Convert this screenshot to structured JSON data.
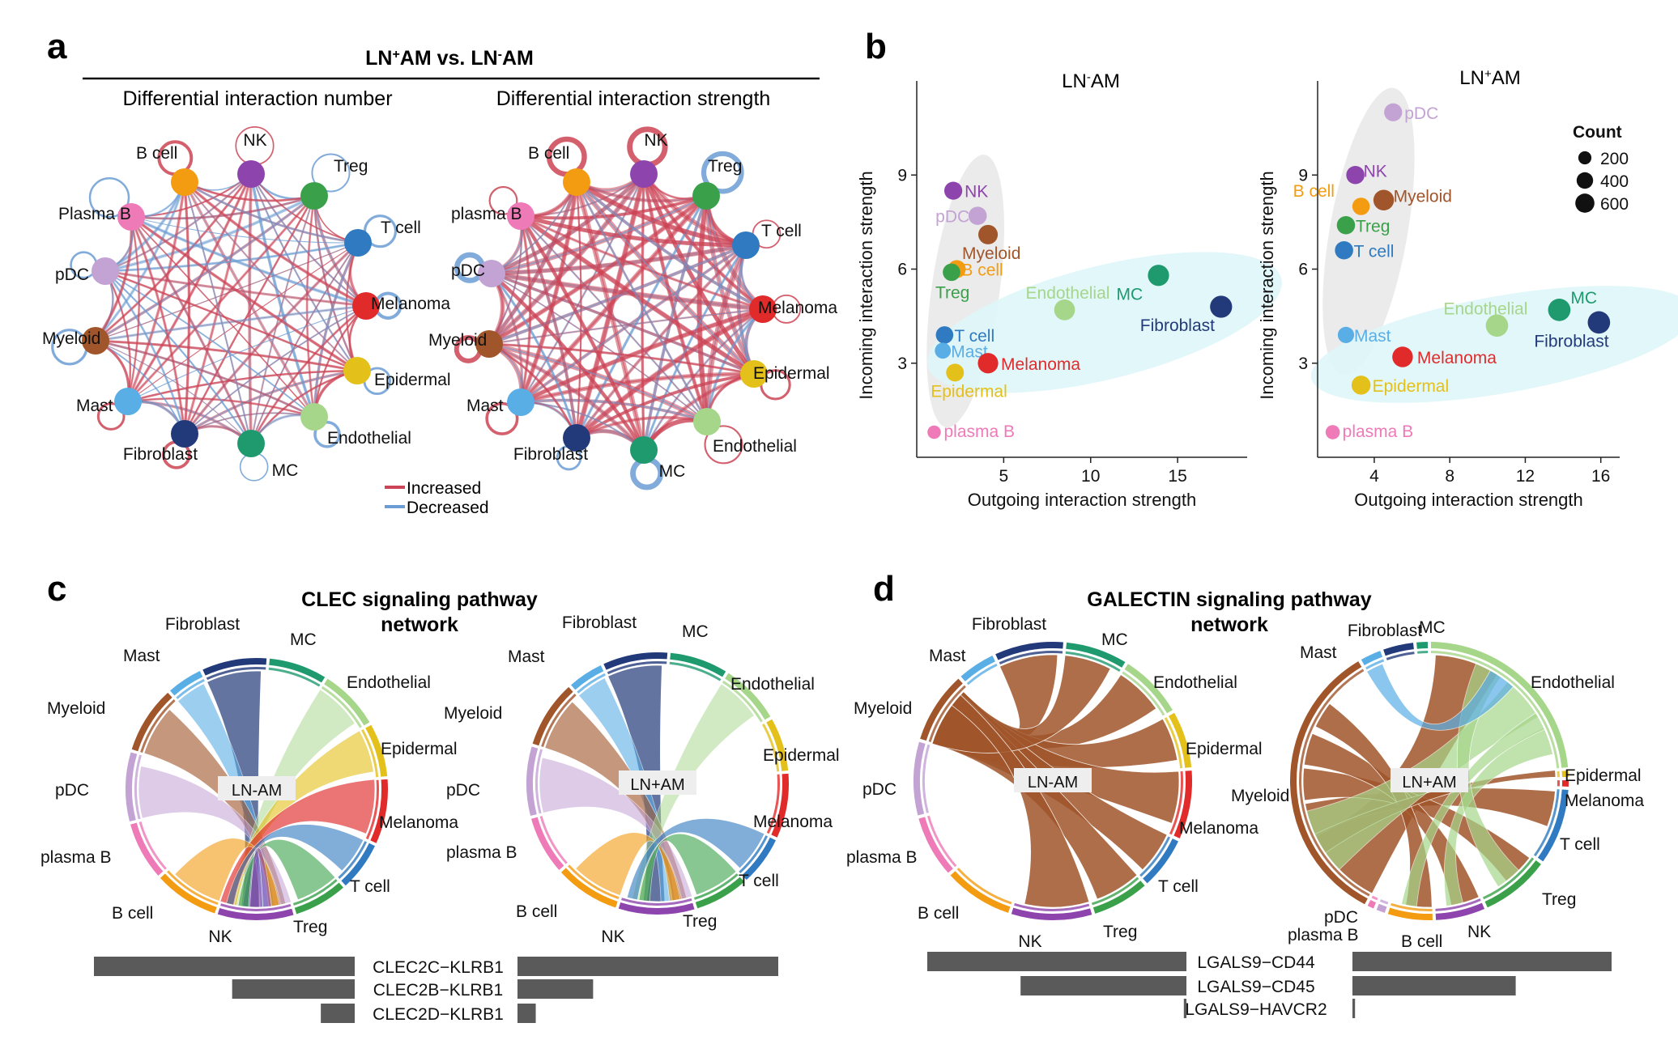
{
  "panel_labels": {
    "a": "a",
    "b": "b",
    "c": "c",
    "d": "d"
  },
  "colors": {
    "NK": "#8e44ad",
    "Treg": "#3aa14a",
    "T cell": "#2f7ac0",
    "Melanoma": "#e12b2b",
    "Epidermal": "#e3c01a",
    "Endothelial": "#a6d68a",
    "MC": "#1f9a6f",
    "Fibroblast": "#223a7a",
    "Mast": "#5aaee6",
    "Myeloid": "#a0552a",
    "pDC": "#c3a2d4",
    "plasma B": "#ee7ab8",
    "B cell": "#f39c12",
    "increased": "#cc4455",
    "decreased": "#6b9cd4"
  },
  "panel_a": {
    "title_part1": "LN",
    "title_sup1": "+",
    "title_part2": "AM vs. LN",
    "title_sup2": "-",
    "title_part3": "AM",
    "left_title": "Differential interaction number",
    "right_title": "Differential interaction strength",
    "legend_increased": "Increased",
    "legend_decreased": "Decreased",
    "nodes_left": [
      "NK",
      "Treg",
      "T cell",
      "Melanoma",
      "Epidermal",
      "Endothelial",
      "MC",
      "Fibroblast",
      "Mast",
      "Myeloid",
      "pDC",
      "Plasma B",
      "B cell"
    ],
    "nodes_right": [
      "NK",
      "Treg",
      "T cell",
      "Melanoma",
      "Epidermal",
      "Endothelial",
      "MC",
      "Fibroblast",
      "Mast",
      "Myeloid",
      "pDC",
      "plasma B",
      "B cell"
    ]
  },
  "chart_data": [
    {
      "type": "scatter",
      "title": "LN-AM",
      "xlabel": "Outgoing interaction strength",
      "ylabel": "Incoming interaction strength",
      "xticks": [
        5,
        10,
        15
      ],
      "yticks": [
        3,
        6,
        9
      ],
      "xlim": [
        0,
        19
      ],
      "ylim": [
        0,
        12
      ],
      "points": [
        {
          "label": "NK",
          "x": 2.1,
          "y": 8.5,
          "count": 220
        },
        {
          "label": "pDC",
          "x": 3.5,
          "y": 7.7,
          "count": 230
        },
        {
          "label": "Myeloid",
          "x": 4.1,
          "y": 7.1,
          "count": 280
        },
        {
          "label": "B cell",
          "x": 2.3,
          "y": 6.0,
          "count": 220
        },
        {
          "label": "Treg",
          "x": 2.0,
          "y": 5.9,
          "count": 200
        },
        {
          "label": "T cell",
          "x": 1.6,
          "y": 3.9,
          "count": 200
        },
        {
          "label": "Mast",
          "x": 1.5,
          "y": 3.4,
          "count": 150
        },
        {
          "label": "Melanoma",
          "x": 4.1,
          "y": 3.0,
          "count": 320
        },
        {
          "label": "Epidermal",
          "x": 2.2,
          "y": 2.7,
          "count": 210
        },
        {
          "label": "plasma B",
          "x": 1.0,
          "y": 0.8,
          "count": 80
        },
        {
          "label": "Endothelial",
          "x": 8.5,
          "y": 4.7,
          "count": 340
        },
        {
          "label": "MC",
          "x": 13.9,
          "y": 5.8,
          "count": 360
        },
        {
          "label": "Fibroblast",
          "x": 17.5,
          "y": 4.8,
          "count": 400
        }
      ]
    },
    {
      "type": "scatter",
      "title": "LN+AM",
      "xlabel": "Outgoing interaction strength",
      "ylabel": "Incoming interaction strength",
      "xticks": [
        4,
        8,
        12,
        16
      ],
      "yticks": [
        3,
        6,
        9
      ],
      "xlim": [
        1,
        17
      ],
      "ylim": [
        0,
        12
      ],
      "points": [
        {
          "label": "pDC",
          "x": 5.0,
          "y": 11.0,
          "count": 220
        },
        {
          "label": "NK",
          "x": 3.0,
          "y": 9.0,
          "count": 230
        },
        {
          "label": "Myeloid",
          "x": 4.5,
          "y": 8.2,
          "count": 330
        },
        {
          "label": "B cell",
          "x": 3.3,
          "y": 8.0,
          "count": 200
        },
        {
          "label": "Treg",
          "x": 2.5,
          "y": 7.4,
          "count": 230
        },
        {
          "label": "T cell",
          "x": 2.4,
          "y": 6.6,
          "count": 230
        },
        {
          "label": "Mast",
          "x": 2.5,
          "y": 3.9,
          "count": 160
        },
        {
          "label": "Melanoma",
          "x": 5.5,
          "y": 3.2,
          "count": 330
        },
        {
          "label": "Epidermal",
          "x": 3.3,
          "y": 2.3,
          "count": 260
        },
        {
          "label": "plasma B",
          "x": 1.8,
          "y": 0.8,
          "count": 100
        },
        {
          "label": "Endothelial",
          "x": 10.5,
          "y": 4.2,
          "count": 420
        },
        {
          "label": "MC",
          "x": 13.8,
          "y": 4.7,
          "count": 420
        },
        {
          "label": "Fibroblast",
          "x": 15.9,
          "y": 4.3,
          "count": 420
        }
      ],
      "legend_title": "Count",
      "legend_sizes": [
        200,
        400,
        600
      ]
    },
    {
      "type": "bar",
      "title": "CLEC signaling pathway network",
      "categories": [
        "CLEC2C−KLRB1",
        "CLEC2B−KLRB1",
        "CLEC2D−KLRB1"
      ],
      "series": [
        {
          "name": "LN-AM",
          "values": [
            1.0,
            0.47,
            0.13
          ]
        },
        {
          "name": "LN+AM",
          "values": [
            1.0,
            0.29,
            0.07
          ]
        }
      ]
    },
    {
      "type": "bar",
      "title": "GALECTIN signaling pathway network",
      "categories": [
        "LGALS9−CD44",
        "LGALS9−CD45",
        "LGALS9−HAVCR2"
      ],
      "series": [
        {
          "name": "LN-AM",
          "values": [
            1.0,
            0.64,
            0.01
          ]
        },
        {
          "name": "LN+AM",
          "values": [
            1.0,
            0.63,
            0.01
          ]
        }
      ]
    }
  ],
  "panel_b": {
    "left_title": "LN",
    "left_title_sup": "-",
    "left_title_end": "AM",
    "right_title": "LN",
    "right_title_sup": "+",
    "right_title_end": "AM"
  },
  "panel_c": {
    "title_line1": "CLEC signaling pathway",
    "title_line2": "network",
    "left_center": "LN-AM",
    "right_center": "LN+AM",
    "left_labels": [
      "Fibroblast",
      "MC",
      "Endothelial",
      "Epidermal",
      "Melanoma",
      "T cell",
      "Treg",
      "NK",
      "B cell",
      "plasma B",
      "pDC",
      "Myeloid",
      "Mast"
    ],
    "right_labels": [
      "Fibroblast",
      "MC",
      "Endothelial",
      "Epidermal",
      "Melanoma",
      "T cell",
      "Treg",
      "NK",
      "B cell",
      "plasma B",
      "pDC",
      "Myeloid",
      "Mast"
    ]
  },
  "panel_d": {
    "title_line1": "GALECTIN signaling pathway",
    "title_line2": "network",
    "left_center": "LN-AM",
    "right_center": "LN+AM",
    "left_labels": [
      "Fibroblast",
      "MC",
      "Endothelial",
      "Epidermal",
      "Melanoma",
      "T cell",
      "Treg",
      "NK",
      "B cell",
      "plasma B",
      "pDC",
      "Myeloid",
      "Mast"
    ],
    "right_labels": [
      "Fibroblast",
      "MC",
      "Endothelial",
      "Epidermal",
      "Melanoma",
      "T cell",
      "Treg",
      "NK",
      "B cell",
      "pDC",
      "plasma B",
      "Myeloid",
      "Mast"
    ]
  }
}
